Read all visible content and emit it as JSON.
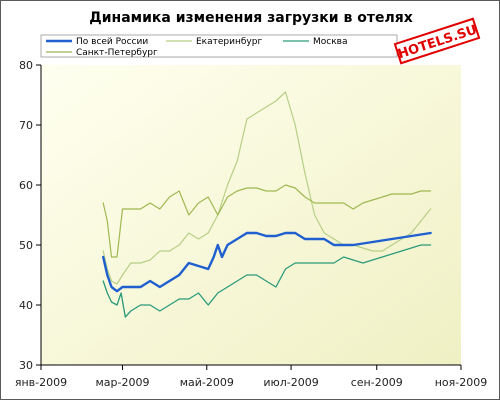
{
  "chart_data": {
    "type": "line",
    "title": "Динамика изменения загрузки в отелях",
    "xlabel": "",
    "ylabel": "",
    "ylim": [
      30,
      80
    ],
    "y_ticks": [
      30,
      40,
      50,
      60,
      70,
      80
    ],
    "x_range": [
      "2009-01-01",
      "2009-11-01"
    ],
    "x_ticks": [
      {
        "date": "2009-01-01",
        "label": "янв-2009"
      },
      {
        "date": "2009-03-01",
        "label": "мар-2009"
      },
      {
        "date": "2009-05-01",
        "label": "май-2009"
      },
      {
        "date": "2009-07-01",
        "label": "июл-2009"
      },
      {
        "date": "2009-09-01",
        "label": "сен-2009"
      },
      {
        "date": "2009-11-01",
        "label": "ноя-2009"
      }
    ],
    "grid": false,
    "legend_position": "top",
    "watermark": "HOTELS.SU",
    "colors": {
      "bg_top": "#fffff0",
      "bg_bottom": "#f0f0c4",
      "axis": "#000000",
      "logo": "#e00000"
    },
    "series": [
      {
        "name": "По всей России",
        "color": "#1f5fcf",
        "width": 2.4,
        "points": [
          [
            "2009-02-15",
            48
          ],
          [
            "2009-02-18",
            45
          ],
          [
            "2009-02-21",
            43
          ],
          [
            "2009-02-25",
            42.3
          ],
          [
            "2009-03-01",
            43
          ],
          [
            "2009-03-07",
            43
          ],
          [
            "2009-03-14",
            43
          ],
          [
            "2009-03-21",
            44
          ],
          [
            "2009-03-28",
            43
          ],
          [
            "2009-04-04",
            44
          ],
          [
            "2009-04-11",
            45
          ],
          [
            "2009-04-18",
            47
          ],
          [
            "2009-04-25",
            46.5
          ],
          [
            "2009-05-02",
            46
          ],
          [
            "2009-05-06",
            48
          ],
          [
            "2009-05-09",
            50
          ],
          [
            "2009-05-12",
            48
          ],
          [
            "2009-05-16",
            50
          ],
          [
            "2009-05-23",
            51
          ],
          [
            "2009-05-30",
            52
          ],
          [
            "2009-06-06",
            52
          ],
          [
            "2009-06-13",
            51.5
          ],
          [
            "2009-06-20",
            51.5
          ],
          [
            "2009-06-27",
            52
          ],
          [
            "2009-07-04",
            52
          ],
          [
            "2009-07-11",
            51
          ],
          [
            "2009-07-18",
            51
          ],
          [
            "2009-07-25",
            51
          ],
          [
            "2009-08-01",
            50
          ],
          [
            "2009-08-15",
            50
          ],
          [
            "2009-08-29",
            50.5
          ],
          [
            "2009-09-12",
            51
          ],
          [
            "2009-09-26",
            51.5
          ],
          [
            "2009-10-10",
            52
          ]
        ]
      },
      {
        "name": "Екатеринбург",
        "color": "#b6cf86",
        "width": 1.2,
        "points": [
          [
            "2009-02-15",
            49
          ],
          [
            "2009-02-18",
            46
          ],
          [
            "2009-02-21",
            44
          ],
          [
            "2009-02-25",
            43.5
          ],
          [
            "2009-03-01",
            45
          ],
          [
            "2009-03-07",
            47
          ],
          [
            "2009-03-14",
            47
          ],
          [
            "2009-03-21",
            47.5
          ],
          [
            "2009-03-28",
            49
          ],
          [
            "2009-04-04",
            49
          ],
          [
            "2009-04-11",
            50
          ],
          [
            "2009-04-18",
            52
          ],
          [
            "2009-04-25",
            51
          ],
          [
            "2009-05-02",
            52
          ],
          [
            "2009-05-09",
            55
          ],
          [
            "2009-05-16",
            60
          ],
          [
            "2009-05-23",
            64
          ],
          [
            "2009-05-30",
            71
          ],
          [
            "2009-06-06",
            72
          ],
          [
            "2009-06-13",
            73
          ],
          [
            "2009-06-20",
            74
          ],
          [
            "2009-06-27",
            75.5
          ],
          [
            "2009-07-04",
            70
          ],
          [
            "2009-07-11",
            62
          ],
          [
            "2009-07-18",
            55
          ],
          [
            "2009-07-25",
            52
          ],
          [
            "2009-08-01",
            51
          ],
          [
            "2009-08-08",
            50
          ],
          [
            "2009-08-15",
            50
          ],
          [
            "2009-08-22",
            49.5
          ],
          [
            "2009-08-29",
            49
          ],
          [
            "2009-09-05",
            49
          ],
          [
            "2009-09-12",
            50
          ],
          [
            "2009-09-19",
            51
          ],
          [
            "2009-09-26",
            52
          ],
          [
            "2009-10-03",
            54
          ],
          [
            "2009-10-10",
            56
          ]
        ]
      },
      {
        "name": "Москва",
        "color": "#2a9a7a",
        "width": 1.3,
        "points": [
          [
            "2009-02-15",
            44
          ],
          [
            "2009-02-18",
            42
          ],
          [
            "2009-02-21",
            40.5
          ],
          [
            "2009-02-25",
            40
          ],
          [
            "2009-02-28",
            42
          ],
          [
            "2009-03-03",
            38
          ],
          [
            "2009-03-07",
            39
          ],
          [
            "2009-03-14",
            40
          ],
          [
            "2009-03-21",
            40
          ],
          [
            "2009-03-28",
            39
          ],
          [
            "2009-04-04",
            40
          ],
          [
            "2009-04-11",
            41
          ],
          [
            "2009-04-18",
            41
          ],
          [
            "2009-04-25",
            42
          ],
          [
            "2009-05-02",
            40
          ],
          [
            "2009-05-09",
            42
          ],
          [
            "2009-05-16",
            43
          ],
          [
            "2009-05-23",
            44
          ],
          [
            "2009-05-30",
            45
          ],
          [
            "2009-06-06",
            45
          ],
          [
            "2009-06-13",
            44
          ],
          [
            "2009-06-20",
            43
          ],
          [
            "2009-06-27",
            46
          ],
          [
            "2009-07-04",
            47
          ],
          [
            "2009-07-11",
            47
          ],
          [
            "2009-07-18",
            47
          ],
          [
            "2009-07-25",
            47
          ],
          [
            "2009-08-01",
            47
          ],
          [
            "2009-08-08",
            48
          ],
          [
            "2009-08-15",
            47.5
          ],
          [
            "2009-08-22",
            47
          ],
          [
            "2009-08-29",
            47.5
          ],
          [
            "2009-09-05",
            48
          ],
          [
            "2009-09-12",
            48.5
          ],
          [
            "2009-09-19",
            49
          ],
          [
            "2009-09-26",
            49.5
          ],
          [
            "2009-10-03",
            50
          ],
          [
            "2009-10-10",
            50
          ]
        ]
      },
      {
        "name": "Санкт-Петербург",
        "color": "#9fb852",
        "width": 1.2,
        "points": [
          [
            "2009-02-15",
            57
          ],
          [
            "2009-02-18",
            54
          ],
          [
            "2009-02-21",
            48
          ],
          [
            "2009-02-25",
            48
          ],
          [
            "2009-03-01",
            56
          ],
          [
            "2009-03-07",
            56
          ],
          [
            "2009-03-14",
            56
          ],
          [
            "2009-03-21",
            57
          ],
          [
            "2009-03-28",
            56
          ],
          [
            "2009-04-04",
            58
          ],
          [
            "2009-04-11",
            59
          ],
          [
            "2009-04-18",
            55
          ],
          [
            "2009-04-25",
            57
          ],
          [
            "2009-05-02",
            58
          ],
          [
            "2009-05-09",
            55
          ],
          [
            "2009-05-16",
            58
          ],
          [
            "2009-05-23",
            59
          ],
          [
            "2009-05-30",
            59.5
          ],
          [
            "2009-06-06",
            59.5
          ],
          [
            "2009-06-13",
            59
          ],
          [
            "2009-06-20",
            59
          ],
          [
            "2009-06-27",
            60
          ],
          [
            "2009-07-04",
            59.5
          ],
          [
            "2009-07-11",
            58
          ],
          [
            "2009-07-18",
            57
          ],
          [
            "2009-07-25",
            57
          ],
          [
            "2009-08-01",
            57
          ],
          [
            "2009-08-08",
            57
          ],
          [
            "2009-08-15",
            56
          ],
          [
            "2009-08-22",
            57
          ],
          [
            "2009-08-29",
            57.5
          ],
          [
            "2009-09-05",
            58
          ],
          [
            "2009-09-12",
            58.5
          ],
          [
            "2009-09-19",
            58.5
          ],
          [
            "2009-09-26",
            58.5
          ],
          [
            "2009-10-03",
            59
          ],
          [
            "2009-10-10",
            59
          ]
        ]
      }
    ]
  }
}
